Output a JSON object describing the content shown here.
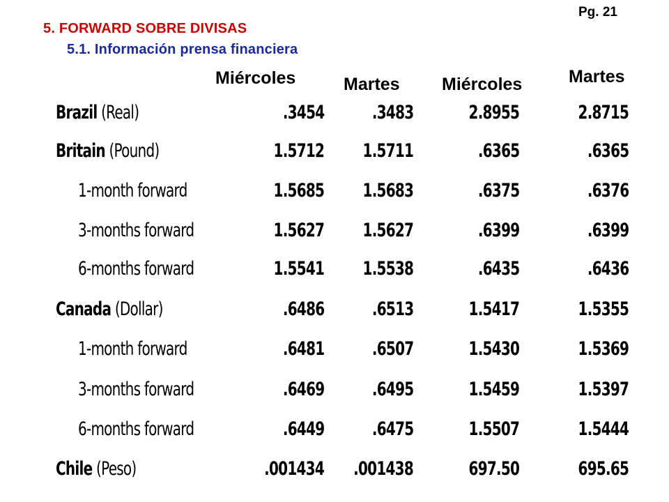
{
  "page": {
    "number": "Pg. 21",
    "title": "5. FORWARD SOBRE DIVISAS",
    "subtitle": "5.1. Información prensa financiera"
  },
  "columns": [
    "Miércoles",
    "Martes",
    "Miércoles",
    "Martes"
  ],
  "rows": [
    {
      "country": "Brazil",
      "unit": "(Real)",
      "label": "",
      "values": [
        ".3454",
        ".3483",
        "2.8955",
        "2.8715"
      ]
    },
    {
      "country": "Britain",
      "unit": "(Pound)",
      "label": "",
      "values": [
        "1.5712",
        "1.5711",
        ".6365",
        ".6365"
      ]
    },
    {
      "country": "",
      "unit": "",
      "label": "1-month forward",
      "values": [
        "1.5685",
        "1.5683",
        ".6375",
        ".6376"
      ]
    },
    {
      "country": "",
      "unit": "",
      "label": "3-months forward",
      "values": [
        "1.5627",
        "1.5627",
        ".6399",
        ".6399"
      ]
    },
    {
      "country": "",
      "unit": "",
      "label": "6-months forward",
      "values": [
        "1.5541",
        "1.5538",
        ".6435",
        ".6436"
      ]
    },
    {
      "country": "Canada",
      "unit": "(Dollar)",
      "label": "",
      "values": [
        ".6486",
        ".6513",
        "1.5417",
        "1.5355"
      ]
    },
    {
      "country": "",
      "unit": "",
      "label": "1-month forward",
      "values": [
        ".6481",
        ".6507",
        "1.5430",
        "1.5369"
      ]
    },
    {
      "country": "",
      "unit": "",
      "label": "3-months forward",
      "values": [
        ".6469",
        ".6495",
        "1.5459",
        "1.5397"
      ]
    },
    {
      "country": "",
      "unit": "",
      "label": "6-months forward",
      "values": [
        ".6449",
        ".6475",
        "1.5507",
        "1.5444"
      ]
    },
    {
      "country": "Chile",
      "unit": "(Peso)",
      "label": "",
      "values": [
        ".001434",
        ".001438",
        "697.50",
        "695.65"
      ]
    }
  ]
}
